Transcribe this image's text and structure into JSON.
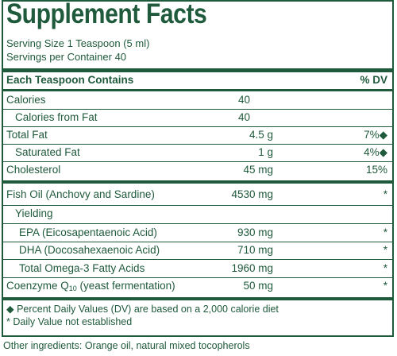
{
  "title": "Supplement Facts",
  "serving_size": "Serving Size 1 Teaspoon (5 ml)",
  "servings_per_container": "Servings per Container 40",
  "header": {
    "left": "Each Teaspoon Contains",
    "right": "% DV"
  },
  "rows": [
    {
      "label": "Calories",
      "amount": "40",
      "dv": ""
    },
    {
      "label": "Calories from Fat",
      "amount": "40",
      "dv": ""
    },
    {
      "label": "Total Fat",
      "amount": "4.5 g",
      "dv": "7%◆"
    },
    {
      "label": "Saturated Fat",
      "amount": "1 g",
      "dv": "4%◆"
    },
    {
      "label": "Cholesterol",
      "amount": "45 mg",
      "dv": "15%"
    },
    {
      "label": "Fish Oil (Anchovy and Sardine)",
      "amount": "4530 mg",
      "dv": "*"
    },
    {
      "label": "Yielding",
      "amount": "",
      "dv": ""
    },
    {
      "label": "EPA (Eicosapentaenoic Acid)",
      "amount": "930 mg",
      "dv": "*"
    },
    {
      "label": "DHA (Docosahexaenoic Acid)",
      "amount": "710 mg",
      "dv": "*"
    },
    {
      "label": "Total Omega-3 Fatty Acids",
      "amount": "1960 mg",
      "dv": "*"
    },
    {
      "label_main": "Coenzyme Q",
      "label_sub": "10",
      "label_rest": " (yeast fermentation)",
      "amount": "50 mg",
      "dv": "*"
    }
  ],
  "footnotes": [
    "◆ Percent Daily Values (DV) are based on a 2,000 calorie diet",
    "* Daily Value not established"
  ],
  "other_ingredients": "Other ingredients: Orange oil, natural mixed tocopherols",
  "colors": {
    "ink": "#1f5a3c",
    "background": "#ffffff"
  }
}
